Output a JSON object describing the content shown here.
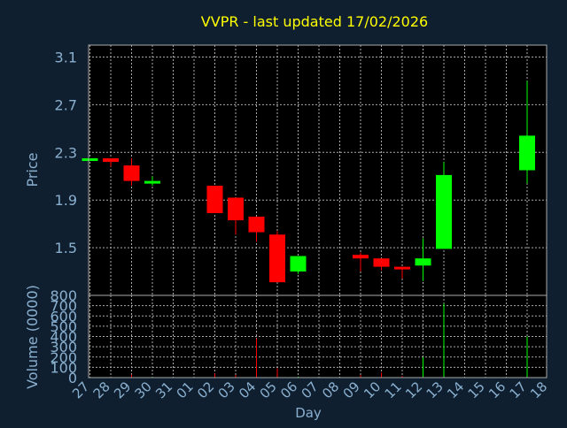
{
  "chart_data": {
    "type": "candlestick",
    "title": "VVPR - last updated 17/02/2026",
    "xlabel": "Day",
    "ylabel_price": "Price",
    "ylabel_volume": "Volume (0000)",
    "x_ticks": [
      "27",
      "28",
      "29",
      "30",
      "31",
      "01",
      "02",
      "03",
      "04",
      "05",
      "06",
      "07",
      "08",
      "09",
      "10",
      "11",
      "12",
      "13",
      "14",
      "15",
      "16",
      "17",
      "18"
    ],
    "price_ticks": [
      1.5,
      1.9,
      2.3,
      2.7,
      3.1
    ],
    "price_tick_labels": [
      "1.5",
      "1.9",
      "2.3",
      "2.7",
      "3.1"
    ],
    "price_range": [
      1.1,
      3.2
    ],
    "volume_ticks": [
      0,
      100,
      200,
      300,
      400,
      500,
      600,
      700,
      800
    ],
    "volume_tick_labels": [
      "0",
      "100",
      "200",
      "300",
      "400",
      "500",
      "600",
      "700",
      "800"
    ],
    "volume_range": [
      0,
      800
    ],
    "grid": true,
    "candles": [
      {
        "day": "27",
        "open": 2.23,
        "close": 2.25,
        "high": 2.25,
        "low": 2.23
      },
      {
        "day": "28",
        "open": 2.25,
        "close": 2.22,
        "high": 2.25,
        "low": 2.18
      },
      {
        "day": "29",
        "open": 2.19,
        "close": 2.06,
        "high": 2.25,
        "low": 2.02
      },
      {
        "day": "30",
        "open": 2.04,
        "close": 2.06,
        "high": 2.1,
        "low": 2.02
      },
      {
        "day": "02",
        "open": 2.02,
        "close": 1.79,
        "high": 2.02,
        "low": 1.79
      },
      {
        "day": "03",
        "open": 1.92,
        "close": 1.73,
        "high": 1.92,
        "low": 1.61
      },
      {
        "day": "04",
        "open": 1.76,
        "close": 1.63,
        "high": 1.76,
        "low": 1.55
      },
      {
        "day": "05",
        "open": 1.61,
        "close": 1.21,
        "high": 1.64,
        "low": 1.21
      },
      {
        "day": "06",
        "open": 1.3,
        "close": 1.43,
        "high": 1.43,
        "low": 1.28
      },
      {
        "day": "09",
        "open": 1.44,
        "close": 1.41,
        "high": 1.46,
        "low": 1.3
      },
      {
        "day": "10",
        "open": 1.41,
        "close": 1.34,
        "high": 1.41,
        "low": 1.31
      },
      {
        "day": "11",
        "open": 1.34,
        "close": 1.33,
        "high": 1.34,
        "low": 1.24
      },
      {
        "day": "12",
        "open": 1.35,
        "close": 1.41,
        "high": 1.58,
        "low": 1.22
      },
      {
        "day": "13",
        "open": 1.49,
        "close": 2.11,
        "high": 2.22,
        "low": 1.49
      },
      {
        "day": "17",
        "open": 2.15,
        "close": 2.44,
        "high": 2.9,
        "low": 2.04
      }
    ],
    "volume": [
      {
        "day": "27",
        "value": 5,
        "direction": "up"
      },
      {
        "day": "28",
        "value": 5,
        "direction": "down"
      },
      {
        "day": "29",
        "value": 30,
        "direction": "down"
      },
      {
        "day": "30",
        "value": 8,
        "direction": "up"
      },
      {
        "day": "02",
        "value": 40,
        "direction": "down"
      },
      {
        "day": "03",
        "value": 25,
        "direction": "down"
      },
      {
        "day": "04",
        "value": 380,
        "direction": "down"
      },
      {
        "day": "05",
        "value": 90,
        "direction": "down"
      },
      {
        "day": "06",
        "value": 10,
        "direction": "up"
      },
      {
        "day": "09",
        "value": 25,
        "direction": "down"
      },
      {
        "day": "10",
        "value": 50,
        "direction": "down"
      },
      {
        "day": "11",
        "value": 15,
        "direction": "down"
      },
      {
        "day": "12",
        "value": 200,
        "direction": "up"
      },
      {
        "day": "13",
        "value": 720,
        "direction": "up"
      },
      {
        "day": "17",
        "value": 400,
        "direction": "up"
      }
    ],
    "colors": {
      "background": "#0f1f2f",
      "plot_background": "#000000",
      "up": "#00ff00",
      "down": "#ff0000",
      "grid": "#aaaaaa",
      "title": "#ffff00",
      "axis_text": "#8ab0d0"
    }
  }
}
